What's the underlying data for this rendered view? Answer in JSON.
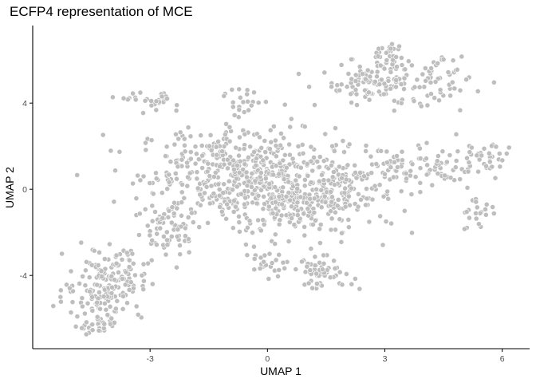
{
  "chart_data": {
    "type": "scatter",
    "title": "ECFP4 representation of MCE",
    "xlabel": "UMAP 1",
    "ylabel": "UMAP 2",
    "xlim": [
      -6.0,
      6.7
    ],
    "ylim": [
      -7.4,
      7.6
    ],
    "x_ticks": [
      -3,
      0,
      3,
      6
    ],
    "y_ticks": [
      -4,
      0,
      4
    ],
    "grid": false,
    "legend": "none",
    "point_color": "#bebebe",
    "point_edge_color": "#ffffff",
    "clusters": [
      {
        "cx": -0.8,
        "cy": 0.8,
        "sx": 1.25,
        "sy": 1.05,
        "n": 430
      },
      {
        "cx": 0.6,
        "cy": -0.5,
        "sx": 0.95,
        "sy": 0.85,
        "n": 260
      },
      {
        "cx": 2.0,
        "cy": 0.0,
        "sx": 0.9,
        "sy": 1.0,
        "n": 110
      },
      {
        "cx": -2.5,
        "cy": -1.8,
        "sx": 0.45,
        "sy": 0.7,
        "n": 70
      },
      {
        "cx": -4.2,
        "cy": -4.6,
        "sx": 0.5,
        "sy": 0.75,
        "n": 130
      },
      {
        "cx": -3.7,
        "cy": -3.8,
        "sx": 0.35,
        "sy": 0.6,
        "n": 50
      },
      {
        "cx": -4.3,
        "cy": -6.4,
        "sx": 0.25,
        "sy": 0.18,
        "n": 30
      },
      {
        "cx": -2.9,
        "cy": 4.1,
        "sx": 0.35,
        "sy": 0.2,
        "n": 28
      },
      {
        "cx": 3.2,
        "cy": 5.0,
        "sx": 0.95,
        "sy": 0.55,
        "n": 170
      },
      {
        "cx": 3.1,
        "cy": 6.3,
        "sx": 0.25,
        "sy": 0.25,
        "n": 25
      },
      {
        "cx": 3.8,
        "cy": 0.9,
        "sx": 0.85,
        "sy": 0.5,
        "n": 85
      },
      {
        "cx": 5.5,
        "cy": 1.3,
        "sx": 0.35,
        "sy": 0.45,
        "n": 40
      },
      {
        "cx": 5.3,
        "cy": -1.0,
        "sx": 0.25,
        "sy": 0.45,
        "n": 22
      },
      {
        "cx": 1.4,
        "cy": -3.9,
        "sx": 0.4,
        "sy": 0.35,
        "n": 60
      },
      {
        "cx": 0.0,
        "cy": -3.5,
        "sx": 0.2,
        "sy": 0.3,
        "n": 22
      },
      {
        "cx": -0.6,
        "cy": 4.2,
        "sx": 0.25,
        "sy": 0.45,
        "n": 22
      }
    ]
  }
}
